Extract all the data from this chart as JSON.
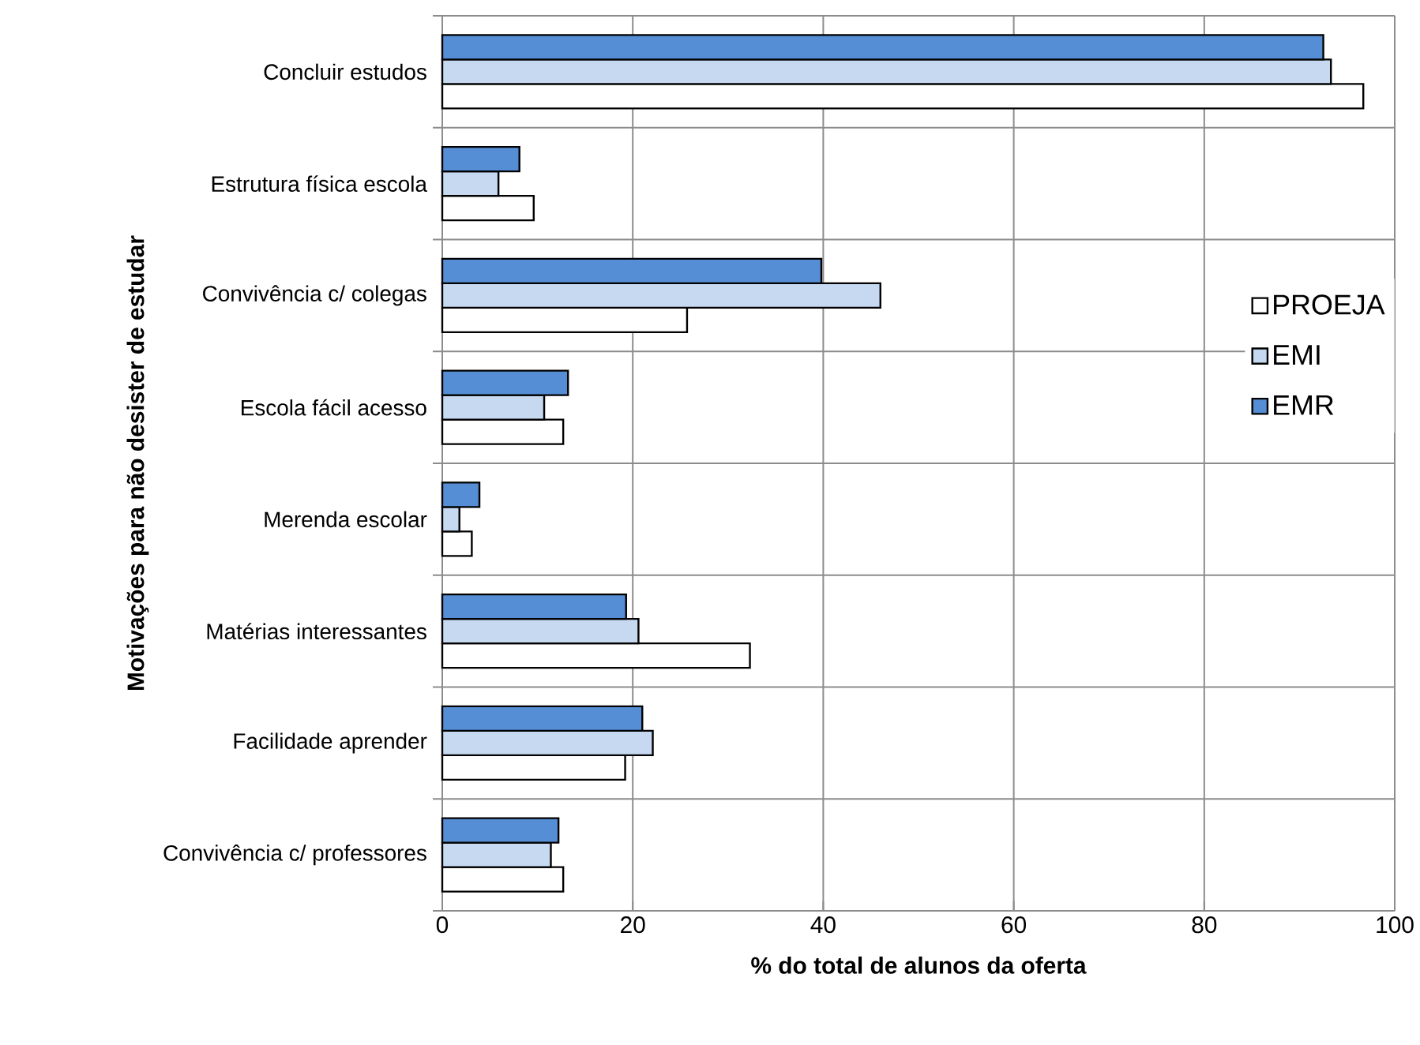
{
  "chart_data": {
    "type": "bar",
    "orientation": "horizontal",
    "xlabel": "% do total de alunos da oferta",
    "ylabel": "Motivações para não desister de estudar",
    "categories": [
      "Concluir estudos",
      "Estrutura física escola",
      "Convivência c/ colegas",
      "Escola fácil acesso",
      "Merenda escolar",
      "Matérias interessantes",
      "Facilidade aprender",
      "Convivência c/ professores"
    ],
    "series": [
      {
        "name": "PROEJA",
        "color": "#ffffff",
        "values": [
          96.7,
          9.6,
          25.7,
          12.7,
          3.1,
          32.3,
          19.2,
          12.7
        ]
      },
      {
        "name": "EMI",
        "color": "#c6d9f1",
        "values": [
          93.3,
          5.9,
          46.0,
          10.7,
          1.8,
          20.6,
          22.1,
          11.4
        ]
      },
      {
        "name": "EMR",
        "color": "#558ed5",
        "values": [
          92.5,
          8.1,
          39.8,
          13.2,
          3.9,
          19.3,
          21.0,
          12.2
        ]
      }
    ],
    "xlim": [
      0,
      100
    ],
    "xticks": [
      0,
      20,
      40,
      60,
      80,
      100
    ],
    "grid": true,
    "legend": "right"
  }
}
